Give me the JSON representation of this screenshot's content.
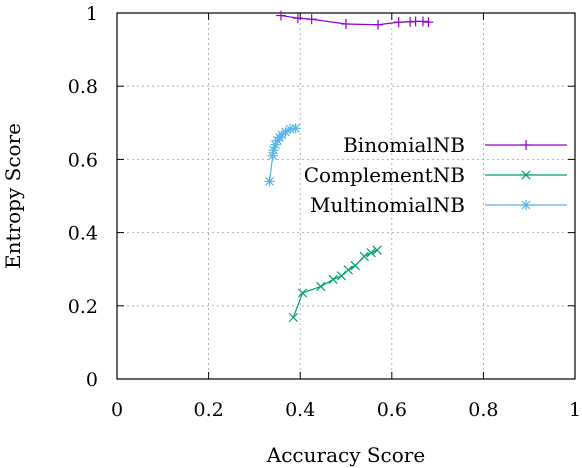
{
  "chart_data": {
    "type": "line",
    "title": "",
    "xlabel": "Accuracy Score",
    "ylabel": "Entropy Score",
    "xlim": [
      0,
      1
    ],
    "ylim": [
      0,
      1
    ],
    "xticks": [
      "0",
      "0.2",
      "0.4",
      "0.6",
      "0.8",
      "1"
    ],
    "yticks": [
      "0",
      "0.2",
      "0.4",
      "0.6",
      "0.8",
      "1"
    ],
    "grid": true,
    "legend_position": "center-right",
    "series": [
      {
        "name": "BinomialNB",
        "color": "#9400D3",
        "marker": "plus",
        "x": [
          0.358,
          0.395,
          0.425,
          0.5,
          0.57,
          0.615,
          0.64,
          0.652,
          0.668,
          0.68
        ],
        "y": [
          0.993,
          0.986,
          0.983,
          0.97,
          0.968,
          0.975,
          0.976,
          0.977,
          0.977,
          0.975
        ]
      },
      {
        "name": "ComplementNB",
        "color": "#009E73",
        "marker": "x",
        "x": [
          0.385,
          0.405,
          0.445,
          0.472,
          0.49,
          0.505,
          0.52,
          0.54,
          0.555,
          0.568
        ],
        "y": [
          0.168,
          0.235,
          0.253,
          0.272,
          0.282,
          0.298,
          0.31,
          0.335,
          0.345,
          0.352
        ]
      },
      {
        "name": "MultinomialNB",
        "color": "#56B4E9",
        "marker": "star",
        "x": [
          0.333,
          0.34,
          0.342,
          0.346,
          0.35,
          0.355,
          0.36,
          0.368,
          0.378,
          0.39
        ],
        "y": [
          0.54,
          0.61,
          0.625,
          0.64,
          0.652,
          0.66,
          0.667,
          0.675,
          0.683,
          0.685
        ]
      }
    ]
  }
}
